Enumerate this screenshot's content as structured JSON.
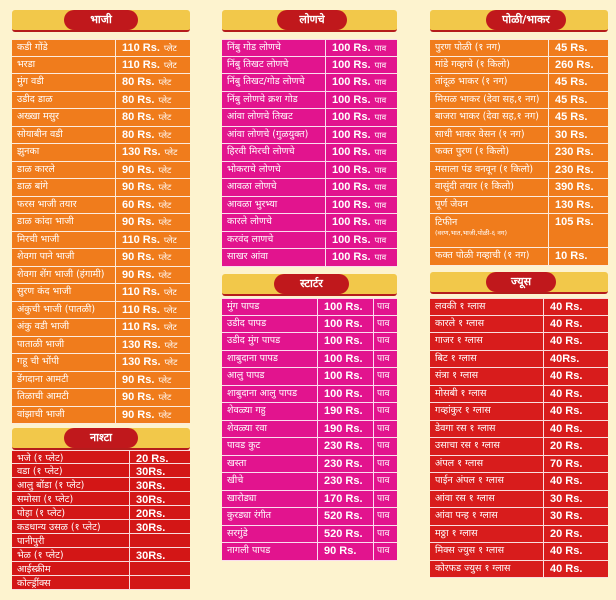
{
  "headers": {
    "bhaji": "भाजी",
    "lonche": "लोणचे",
    "poli": "पोळी/भाकर",
    "starter": "स्टार्टर",
    "nashta": "नाश्टा",
    "juice": "ज्यूस"
  },
  "colors": {
    "orange": "#f07c1c",
    "magenta": "#e2148e",
    "red": "#d81c1c",
    "header_pill": "#c0181c",
    "header_bar": "#f2c84a",
    "background": "#fdf3cf"
  },
  "bhaji": [
    {
      "name": "कडी गोंडे",
      "price": "110 Rs.",
      "unit": "प्लेट"
    },
    {
      "name": "भरडा",
      "price": "110 Rs.",
      "unit": "प्लेट"
    },
    {
      "name": "मुंग वडी",
      "price": "80 Rs.",
      "unit": "प्लेट"
    },
    {
      "name": "उडीद डाळ",
      "price": "80 Rs.",
      "unit": "प्लेट"
    },
    {
      "name": "अख्खा मसुर",
      "price": "80 Rs.",
      "unit": "प्लेट"
    },
    {
      "name": "सोयाबीन वडी",
      "price": "80 Rs.",
      "unit": "प्लेट"
    },
    {
      "name": "झुनका",
      "price": "130 Rs.",
      "unit": "प्लेट"
    },
    {
      "name": "डाळ कारले",
      "price": "90 Rs.",
      "unit": "प्लेट"
    },
    {
      "name": "डाळ बांगे",
      "price": "90 Rs.",
      "unit": "प्लेट"
    },
    {
      "name": "फरस भाजी तयार",
      "price": "60 Rs.",
      "unit": "प्लेट"
    },
    {
      "name": "डाळ कांदा भाजी",
      "price": "90 Rs.",
      "unit": "प्लेट"
    },
    {
      "name": "मिरची भाजी",
      "price": "110 Rs.",
      "unit": "प्लेट"
    },
    {
      "name": "शेवगा पाने भाजी",
      "price": "90 Rs.",
      "unit": "प्लेट"
    },
    {
      "name": "शेवगा शेंग भाजी (हंगामी)",
      "price": "90 Rs.",
      "unit": "प्लेट"
    },
    {
      "name": "सुरण कंद भाजी",
      "price": "110 Rs.",
      "unit": "प्लेट"
    },
    {
      "name": "अंकुची भाजी (पातळी)",
      "price": "110 Rs.",
      "unit": "प्लेट"
    },
    {
      "name": "अंकु वडी भाजी",
      "price": "110 Rs.",
      "unit": "प्लेट"
    },
    {
      "name": "पाताळी भाजी",
      "price": "130 Rs.",
      "unit": "प्लेट"
    },
    {
      "name": "गहू ची भोंपी",
      "price": "130 Rs.",
      "unit": "प्लेट"
    },
    {
      "name": "डेंगदाना आमटी",
      "price": "90 Rs.",
      "unit": "प्लेट"
    },
    {
      "name": "तिळाची आमटी",
      "price": "90 Rs.",
      "unit": "प्लेट"
    },
    {
      "name": "वांझाची भाजी",
      "price": "90 Rs.",
      "unit": "प्लेट"
    }
  ],
  "lonche": [
    {
      "name": "निंबु गोड लोणचे",
      "price": "100 Rs.",
      "unit": "पाव"
    },
    {
      "name": "निंबु तिखट लोणचे",
      "price": "100 Rs.",
      "unit": "पाव"
    },
    {
      "name": "निंबु तिखट/गोड लोणचे",
      "price": "100 Rs.",
      "unit": "पाव"
    },
    {
      "name": "निंबु लोणचे क्रश गोड",
      "price": "100 Rs.",
      "unit": "पाव"
    },
    {
      "name": "आंवा लोणचे तिखट",
      "price": "100 Rs.",
      "unit": "पाव"
    },
    {
      "name": "आंवा लोणचे (गुळयुक्त)",
      "price": "100 Rs.",
      "unit": "पाव"
    },
    {
      "name": "हिरवी मिरची लोणचे",
      "price": "100 Rs.",
      "unit": "पाव"
    },
    {
      "name": "भोकराचे लोणचे",
      "price": "100 Rs.",
      "unit": "पाव"
    },
    {
      "name": "आवळा लोणचे",
      "price": "100 Rs.",
      "unit": "पाव"
    },
    {
      "name": "आवळा भुरभ्या",
      "price": "100 Rs.",
      "unit": "पाव"
    },
    {
      "name": "कारले लोणचे",
      "price": "100 Rs.",
      "unit": "पाव"
    },
    {
      "name": "करवंद लाणचे",
      "price": "100 Rs.",
      "unit": "पाव"
    },
    {
      "name": "साखर आंवा",
      "price": "100 Rs.",
      "unit": "पाव"
    }
  ],
  "poli": [
    {
      "name": "पुरण पोळी (१ नग)",
      "price": "45 Rs.",
      "sub": ""
    },
    {
      "name": "मांडे गव्हाचे (१ किलो)",
      "price": "260 Rs.",
      "sub": ""
    },
    {
      "name": "तांदूळ भाकर (१ नग)",
      "price": "45 Rs.",
      "sub": ""
    },
    {
      "name": "मिसळ भाकर (देवा सह,१ नग)",
      "price": "45 Rs.",
      "sub": ""
    },
    {
      "name": "बाजरा भाकर (देवा सह,१ नग)",
      "price": "45 Rs.",
      "sub": ""
    },
    {
      "name": "साधी भाकर वेसन (१ नग)",
      "price": "30 Rs.",
      "sub": ""
    },
    {
      "name": "फक्त पुरण (१ किलो)",
      "price": "230 Rs.",
      "sub": ""
    },
    {
      "name": "मसाला पंड वनवून (१ किलो)",
      "price": "230 Rs.",
      "sub": ""
    },
    {
      "name": "वासुंदी तयार (१ किलो)",
      "price": "390 Rs.",
      "sub": ""
    },
    {
      "name": "पूर्ण जेवन",
      "price": "130 Rs.",
      "sub": ""
    },
    {
      "name": "टिफीन",
      "price": "105 Rs.",
      "sub": "(वरण,भात,भाजी,पोळी-६ नग)"
    },
    {
      "name": "फक्त पोळी गव्हाची (१ नग)",
      "price": "10 Rs.",
      "sub": ""
    }
  ],
  "starter": [
    {
      "name": "मुंग पापड",
      "price": "100 Rs.",
      "unit": "पाव"
    },
    {
      "name": "उडीद पापड",
      "price": "100 Rs.",
      "unit": "पाव"
    },
    {
      "name": "उडीद मुंग पापड",
      "price": "100 Rs.",
      "unit": "पाव"
    },
    {
      "name": "शाबुदाना पापड",
      "price": "100 Rs.",
      "unit": "पाव"
    },
    {
      "name": "आलु पापड",
      "price": "100 Rs.",
      "unit": "पाव"
    },
    {
      "name": "शाबुदाना आलु पापड",
      "price": "100 Rs.",
      "unit": "पाव"
    },
    {
      "name": "शेवळ्या गहु",
      "price": "190 Rs.",
      "unit": "पाव"
    },
    {
      "name": "शेवळ्या रवा",
      "price": "190 Rs.",
      "unit": "पाव"
    },
    {
      "name": "पावड कुट",
      "price": "230 Rs.",
      "unit": "पाव"
    },
    {
      "name": "खस्ता",
      "price": "230 Rs.",
      "unit": "पाव"
    },
    {
      "name": "खीचे",
      "price": "230 Rs.",
      "unit": "पाव"
    },
    {
      "name": "खारोड्या",
      "price": "170 Rs.",
      "unit": "पाव"
    },
    {
      "name": "कुरड्या रंगीत",
      "price": "520 Rs.",
      "unit": "पाव"
    },
    {
      "name": "सरगुंडे",
      "price": "520 Rs.",
      "unit": "पाव"
    },
    {
      "name": "नागली पापड",
      "price": "90 Rs.",
      "unit": "पाव"
    }
  ],
  "nashta": [
    {
      "name": "भजे (१ प्लेट)",
      "price": "20 Rs."
    },
    {
      "name": "वडा (१ प्लेट)",
      "price": "30Rs."
    },
    {
      "name": "आलु बोंडा (१ प्लेट)",
      "price": "30Rs."
    },
    {
      "name": "समोसा (१ प्लेट)",
      "price": "30Rs."
    },
    {
      "name": "पोहा (१ प्लेट)",
      "price": "20Rs."
    },
    {
      "name": "कडधान्य उसळ (१ प्लेट)",
      "price": "30Rs."
    },
    {
      "name": "पानीपुरी",
      "price": ""
    },
    {
      "name": "भेळ (१ प्लेट)",
      "price": "30Rs."
    },
    {
      "name": "आईस्क्रीम",
      "price": ""
    },
    {
      "name": "कोल्ड्रींक्स",
      "price": ""
    }
  ],
  "juice": [
    {
      "name": "लवकी १ ग्लास",
      "price": "40 Rs."
    },
    {
      "name": "कारले १ ग्लास",
      "price": "40 Rs."
    },
    {
      "name": "गाजर १ ग्लास",
      "price": "40 Rs."
    },
    {
      "name": "बिट १ ग्लास",
      "price": "40Rs."
    },
    {
      "name": "संत्रा १ ग्लास",
      "price": "40 Rs."
    },
    {
      "name": "मोसबी १ ग्लास",
      "price": "40 Rs."
    },
    {
      "name": "गव्हांकुर १ ग्लास",
      "price": "40 Rs."
    },
    {
      "name": "डेवगा रस १ ग्लास",
      "price": "40 Rs."
    },
    {
      "name": "उसाचा रस १ ग्लास",
      "price": "20 Rs."
    },
    {
      "name": "अंपल १ ग्लास",
      "price": "70 Rs."
    },
    {
      "name": "पाईन अंपल १ ग्लास",
      "price": "40 Rs."
    },
    {
      "name": "आंवा रस १ ग्लास",
      "price": "30 Rs."
    },
    {
      "name": "आंवा पन्ह १ ग्लास",
      "price": "30 Rs."
    },
    {
      "name": "मठ्ठा १ ग्लास",
      "price": "20 Rs."
    },
    {
      "name": "मिक्स ज्युस १ ग्लास",
      "price": "40 Rs."
    },
    {
      "name": "कोरफड ज्युस १ ग्लास",
      "price": "40 Rs."
    }
  ]
}
